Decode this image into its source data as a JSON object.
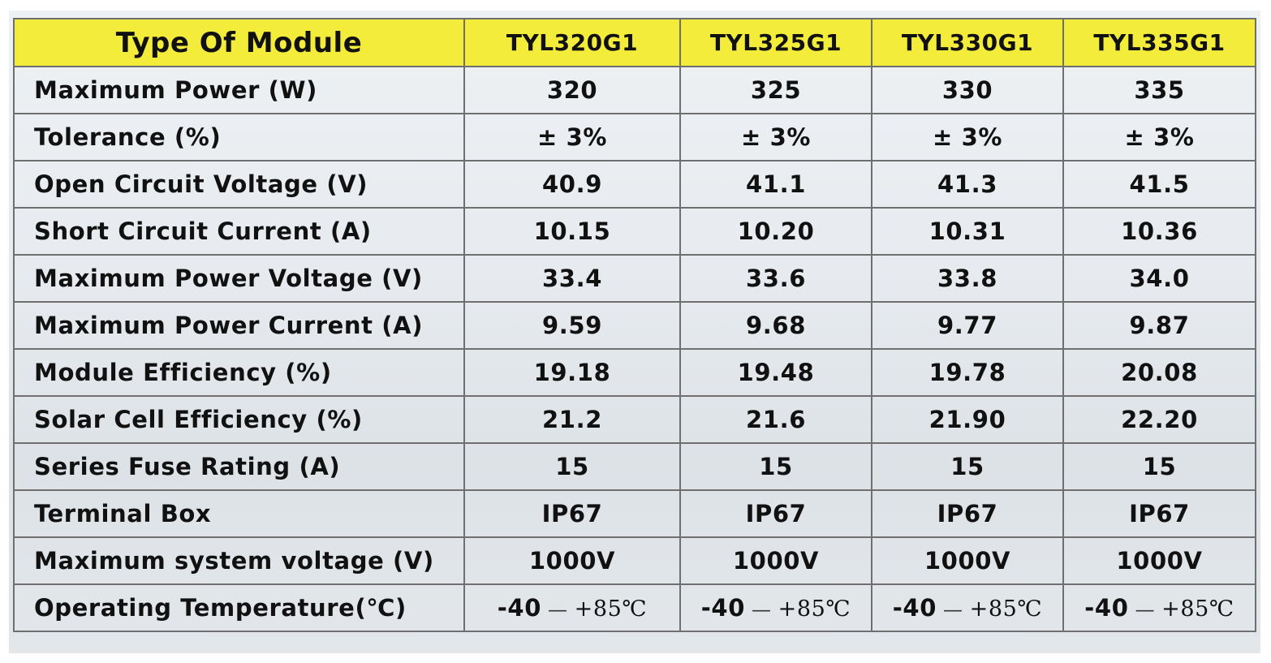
{
  "table": {
    "header": {
      "label": "Type Of Module",
      "models": [
        "TYL320G1",
        "TYL325G1",
        "TYL330G1",
        "TYL335G1"
      ]
    },
    "rows": [
      {
        "label": "Maximum Power (W)",
        "values": [
          "320",
          "325",
          "330",
          "335"
        ]
      },
      {
        "label": "Tolerance (%)",
        "values": [
          "± 3%",
          "± 3%",
          "± 3%",
          "± 3%"
        ]
      },
      {
        "label": "Open Circuit Voltage (V)",
        "values": [
          "40.9",
          "41.1",
          "41.3",
          "41.5"
        ]
      },
      {
        "label": "Short Circuit Current (A)",
        "values": [
          "10.15",
          "10.20",
          "10.31",
          "10.36"
        ]
      },
      {
        "label": "Maximum Power Voltage (V)",
        "values": [
          "33.4",
          "33.6",
          "33.8",
          "34.0"
        ]
      },
      {
        "label": "Maximum Power Current (A)",
        "values": [
          "9.59",
          "9.68",
          "9.77",
          "9.87"
        ]
      },
      {
        "label": "Module Efficiency (%)",
        "values": [
          "19.18",
          "19.48",
          "19.78",
          "20.08"
        ]
      },
      {
        "label": "Solar Cell Efficiency (%)",
        "values": [
          "21.2",
          "21.6",
          "21.90",
          "22.20"
        ]
      },
      {
        "label": "Series Fuse Rating (A)",
        "values": [
          "15",
          "15",
          "15",
          "15"
        ]
      },
      {
        "label": "Terminal Box",
        "values": [
          "IP67",
          "IP67",
          "IP67",
          "IP67"
        ]
      },
      {
        "label": "Maximum system voltage (V)",
        "values": [
          "1000V",
          "1000V",
          "1000V",
          "1000V"
        ]
      }
    ],
    "temperature_row": {
      "label": "Operating Temperature(℃)",
      "low": "-40",
      "dash": "—",
      "high": "+85℃"
    }
  },
  "colors": {
    "header_background": "#f4ec3a",
    "border": "#6f6f6f",
    "text": "#111111"
  }
}
